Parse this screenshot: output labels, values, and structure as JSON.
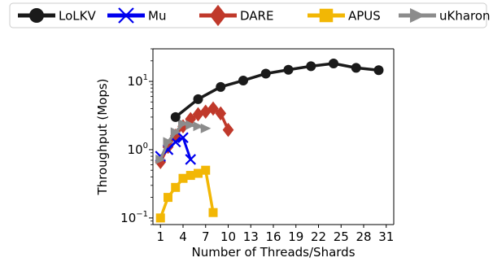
{
  "chart_data": {
    "type": "line",
    "title": "",
    "xlabel": "Number of Threads/Shards",
    "ylabel": "Throughput (Mops)",
    "yscale": "log",
    "ylim": [
      0.08,
      30
    ],
    "xlim": [
      0,
      32
    ],
    "x_ticks": [
      1,
      4,
      7,
      10,
      13,
      16,
      19,
      22,
      25,
      28,
      31
    ],
    "x_tick_labels": [
      "1",
      "4",
      "7",
      "10",
      "13",
      "16",
      "19",
      "22",
      "25",
      "28",
      "31"
    ],
    "y_ticks": [
      0.1,
      1,
      10
    ],
    "y_tick_labels": [
      {
        "base": "10",
        "exp": "−1"
      },
      {
        "base": "10",
        "exp": "0"
      },
      {
        "base": "10",
        "exp": "1"
      }
    ],
    "grid": false,
    "legend_placement": "top, outside the axes, single row",
    "series": [
      {
        "name": "LoLKV",
        "color": "#1a1a1a",
        "marker": "circle",
        "line": "solid",
        "x": [
          3,
          6,
          9,
          12,
          15,
          18,
          21,
          24,
          27,
          30
        ],
        "y": [
          3.0,
          5.5,
          8.3,
          10.3,
          13.0,
          14.8,
          16.7,
          18.3,
          15.8,
          14.6
        ]
      },
      {
        "name": "Mu",
        "color": "#0000ee",
        "marker": "x",
        "line": "solid",
        "x": [
          1,
          2,
          3,
          4,
          5
        ],
        "y": [
          0.8,
          1.0,
          1.3,
          1.5,
          0.72
        ]
      },
      {
        "name": "DARE",
        "color": "#c0392b",
        "marker": "diamond",
        "line": "solid",
        "x": [
          1,
          2,
          3,
          4,
          5,
          6,
          7,
          8,
          9,
          10
        ],
        "y": [
          0.66,
          1.1,
          1.6,
          2.2,
          2.8,
          3.3,
          3.6,
          4.0,
          3.4,
          1.95
        ]
      },
      {
        "name": "APUS",
        "color": "#f2b705",
        "marker": "square",
        "line": "solid",
        "x": [
          1,
          2,
          3,
          4,
          5,
          6,
          7,
          8
        ],
        "y": [
          0.1,
          0.2,
          0.28,
          0.38,
          0.42,
          0.45,
          0.5,
          0.12
        ]
      },
      {
        "name": "uKharon",
        "color": "#8c8c8c",
        "marker": "triangle-right",
        "line": "solid",
        "x": [
          1,
          2,
          3,
          4,
          5,
          6,
          7
        ],
        "y": [
          0.72,
          1.3,
          1.8,
          2.4,
          2.3,
          2.2,
          2.05
        ]
      }
    ]
  }
}
